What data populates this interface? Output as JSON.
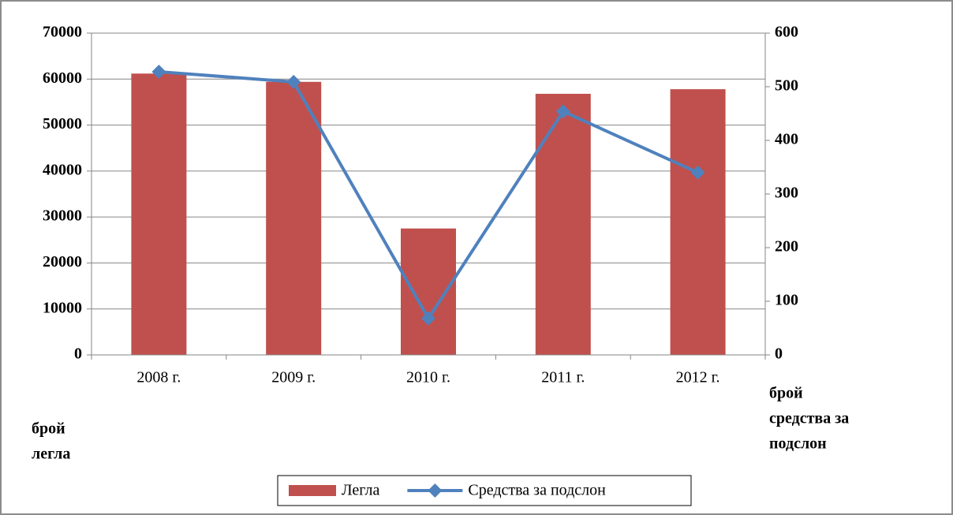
{
  "chart_data": {
    "type": "bar_line",
    "categories": [
      "2008 г.",
      "2009 г.",
      "2010 г.",
      "2011 г.",
      "2012 г."
    ],
    "series": [
      {
        "name": "Легла",
        "type": "bar",
        "color": "#c0504d",
        "values": [
          61200,
          59400,
          27500,
          56800,
          57800
        ]
      },
      {
        "name": "Средства за подслон",
        "type": "line",
        "axis": "y2",
        "color": "#4f81bd",
        "values": [
          528,
          509,
          68,
          454,
          340
        ]
      }
    ],
    "ylim": [
      0,
      70000
    ],
    "yticks": [
      0,
      10000,
      20000,
      30000,
      40000,
      50000,
      60000,
      70000
    ],
    "y2lim": [
      0,
      600
    ],
    "y2ticks": [
      0,
      100,
      200,
      300,
      400,
      500,
      600
    ],
    "y_label": [
      "брой",
      "легла"
    ],
    "y2_label": [
      "брой",
      "средства за",
      "подслон"
    ],
    "grid": true,
    "legend": "bottom"
  }
}
